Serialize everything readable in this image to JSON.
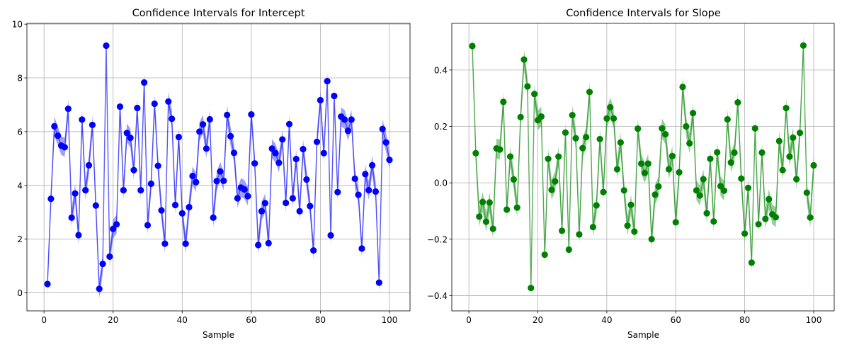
{
  "chart_data": [
    {
      "type": "line",
      "title": "Confidence Intervals for Intercept",
      "xlabel": "Sample",
      "ylabel": "",
      "xlim": [
        -4.95,
        105.95
      ],
      "ylim": [
        -0.67,
        10.03
      ],
      "xticks": [
        0,
        20,
        40,
        60,
        80,
        100
      ],
      "xtick_labels": [
        "0",
        "20",
        "40",
        "60",
        "80",
        "100"
      ],
      "yticks": [
        0,
        2,
        4,
        6,
        8,
        10
      ],
      "ytick_labels": [
        "0",
        "2",
        "4",
        "6",
        "8",
        "10"
      ],
      "grid": true,
      "color": "#0000ff",
      "band_color": "#6060f0",
      "ci_half_width": 0.35,
      "x": [
        1,
        2,
        3,
        4,
        5,
        6,
        7,
        8,
        9,
        10,
        11,
        12,
        13,
        14,
        15,
        16,
        17,
        18,
        19,
        20,
        21,
        22,
        23,
        24,
        25,
        26,
        27,
        28,
        29,
        30,
        31,
        32,
        33,
        34,
        35,
        36,
        37,
        38,
        39,
        40,
        41,
        42,
        43,
        44,
        45,
        46,
        47,
        48,
        49,
        50,
        51,
        52,
        53,
        54,
        55,
        56,
        57,
        58,
        59,
        60,
        61,
        62,
        63,
        64,
        65,
        66,
        67,
        68,
        69,
        70,
        71,
        72,
        73,
        74,
        75,
        76,
        77,
        78,
        79,
        80,
        81,
        82,
        83,
        84,
        85,
        86,
        87,
        88,
        89,
        90,
        91,
        92,
        93,
        94,
        95,
        96,
        97,
        98,
        99,
        100
      ],
      "values": [
        0.33,
        3.5,
        6.2,
        5.85,
        5.48,
        5.42,
        6.85,
        2.8,
        3.7,
        2.15,
        6.45,
        3.82,
        4.75,
        6.25,
        3.25,
        0.15,
        1.08,
        9.2,
        1.35,
        2.38,
        2.55,
        6.93,
        3.82,
        5.95,
        5.77,
        4.57,
        6.88,
        3.82,
        7.83,
        2.52,
        4.06,
        7.04,
        4.73,
        3.07,
        1.83,
        7.12,
        6.48,
        3.27,
        5.8,
        2.96,
        1.83,
        3.19,
        4.35,
        4.12,
        6.0,
        6.27,
        5.37,
        6.46,
        2.8,
        4.16,
        4.52,
        4.17,
        6.62,
        5.83,
        5.21,
        3.52,
        3.92,
        3.85,
        3.6,
        6.64,
        4.82,
        1.78,
        3.04,
        3.34,
        1.85,
        5.37,
        5.2,
        4.84,
        5.71,
        3.35,
        6.28,
        3.52,
        4.98,
        3.04,
        5.35,
        4.22,
        3.23,
        1.58,
        5.62,
        7.17,
        5.2,
        7.88,
        2.14,
        7.33,
        3.75,
        6.56,
        6.45,
        6.03,
        6.45,
        4.25,
        3.65,
        1.65,
        4.42,
        3.82,
        4.75,
        3.77,
        0.38,
        6.1,
        5.6,
        4.95
      ]
    },
    {
      "type": "line",
      "title": "Confidence Intervals for Slope",
      "xlabel": "Sample",
      "ylabel": "",
      "xlim": [
        -4.95,
        105.95
      ],
      "ylim": [
        -0.4542,
        0.5654
      ],
      "xticks": [
        0,
        20,
        40,
        60,
        80,
        100
      ],
      "xtick_labels": [
        "0",
        "20",
        "40",
        "60",
        "80",
        "100"
      ],
      "yticks": [
        -0.4,
        -0.2,
        0.0,
        0.2,
        0.4
      ],
      "ytick_labels": [
        "−0.4",
        "−0.2",
        "0.0",
        "0.2",
        "0.4"
      ],
      "grid": true,
      "color": "#008000",
      "band_color": "#4caf50",
      "ci_half_width": 0.035,
      "x": [
        1,
        2,
        3,
        4,
        5,
        6,
        7,
        8,
        9,
        10,
        11,
        12,
        13,
        14,
        15,
        16,
        17,
        18,
        19,
        20,
        21,
        22,
        23,
        24,
        25,
        26,
        27,
        28,
        29,
        30,
        31,
        32,
        33,
        34,
        35,
        36,
        37,
        38,
        39,
        40,
        41,
        42,
        43,
        44,
        45,
        46,
        47,
        48,
        49,
        50,
        51,
        52,
        53,
        54,
        55,
        56,
        57,
        58,
        59,
        60,
        61,
        62,
        63,
        64,
        65,
        66,
        67,
        68,
        69,
        70,
        71,
        72,
        73,
        74,
        75,
        76,
        77,
        78,
        79,
        80,
        81,
        82,
        83,
        84,
        85,
        86,
        87,
        88,
        89,
        90,
        91,
        92,
        93,
        94,
        95,
        96,
        97,
        98,
        99,
        100
      ],
      "values": [
        0.485,
        0.105,
        -0.12,
        -0.068,
        -0.138,
        -0.07,
        -0.163,
        0.122,
        0.118,
        0.287,
        -0.095,
        0.093,
        0.012,
        -0.088,
        0.233,
        0.437,
        0.342,
        -0.373,
        0.315,
        0.222,
        0.235,
        -0.255,
        0.085,
        -0.025,
        0.005,
        0.093,
        -0.17,
        0.178,
        -0.237,
        0.24,
        0.158,
        -0.183,
        0.123,
        0.162,
        0.322,
        -0.157,
        -0.08,
        0.155,
        -0.033,
        0.228,
        0.268,
        0.228,
        0.048,
        0.143,
        -0.027,
        -0.152,
        -0.078,
        -0.173,
        0.192,
        0.068,
        0.035,
        0.068,
        -0.2,
        -0.042,
        -0.013,
        0.193,
        0.172,
        0.048,
        0.095,
        -0.14,
        0.037,
        0.34,
        0.2,
        0.14,
        0.247,
        -0.027,
        -0.045,
        0.013,
        -0.108,
        0.085,
        -0.137,
        0.108,
        -0.012,
        -0.028,
        0.225,
        0.072,
        0.107,
        0.285,
        0.015,
        -0.18,
        -0.018,
        -0.283,
        0.193,
        -0.147,
        0.107,
        -0.128,
        -0.058,
        -0.112,
        -0.122,
        0.148,
        0.045,
        0.265,
        0.093,
        0.16,
        0.013,
        0.177,
        0.487,
        -0.035,
        -0.123,
        0.062
      ]
    }
  ]
}
